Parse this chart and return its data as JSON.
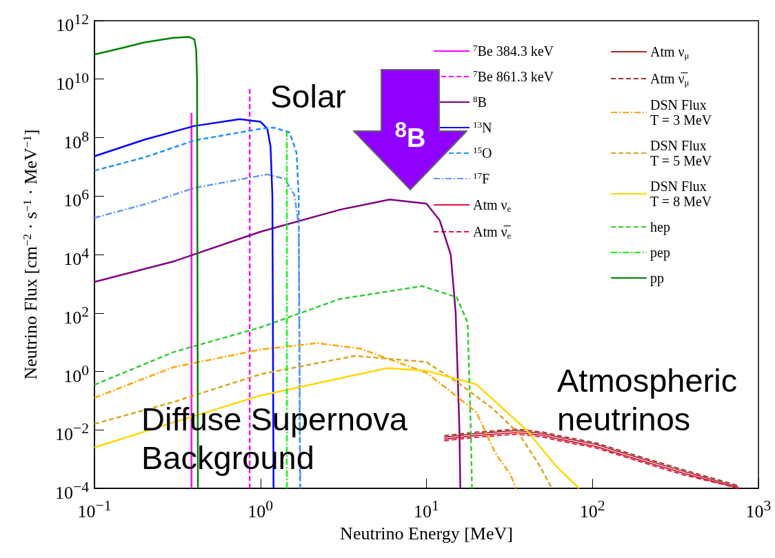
{
  "chart_data": {
    "type": "line",
    "xlabel": "Neutrino Energy [MeV]",
    "ylabel": "Neutrino Flux [cm$^{−2}$ · s$^{−1}$ · MeV$^{−1}$]",
    "log": "xy",
    "grid": false,
    "legend": "top right",
    "marker": "none",
    "xlim": [
      0.1,
      1000
    ],
    "ylim": [
      0.0001,
      1000000000000
    ],
    "xticks": [
      {
        "value": 0.1,
        "label": "10$^{−1}$"
      },
      {
        "value": 1,
        "label": "10$^{0}$"
      },
      {
        "value": 10,
        "label": "10$^{1}$"
      },
      {
        "value": 100,
        "label": "10$^{2}$"
      },
      {
        "value": 1000,
        "label": "10$^{3}$"
      }
    ],
    "yticks": [
      {
        "value": 0.0001,
        "label": "10$^{−4}$"
      },
      {
        "value": 0.01,
        "label": "10$^{−2}$"
      },
      {
        "value": 1,
        "label": "10$^{0}$"
      },
      {
        "value": 100,
        "label": "10$^{2}$"
      },
      {
        "value": 10000,
        "label": "10$^{4}$"
      },
      {
        "value": 1000000,
        "label": "10$^{6}$"
      },
      {
        "value": 100000000,
        "label": "10$^{8}$"
      },
      {
        "value": 10000000000,
        "label": "10$^{10}$"
      },
      {
        "value": 1000000000000,
        "label": "10$^{12}$"
      }
    ],
    "annotations": [
      "$^{8}$B",
      "Solar",
      "Diffuse Supernova\nBackground",
      "Atmospheric\nneutrinos"
    ],
    "series": [
      {
        "name": "$^{7}$Be 384.3 keV",
        "color": "#ff00ff",
        "line_style": "solid",
        "x": [
          0.3843,
          0.3843
        ],
        "values": [
          0.0001,
          700000000
        ]
      },
      {
        "name": "$^{7}$Be 861.3 keV",
        "color": "#ff00ff",
        "line_style": "dashed",
        "x": [
          0.8613,
          0.8613
        ],
        "values": [
          0.0001,
          4700000000
        ]
      },
      {
        "name": "$^{8}$B",
        "color": "#800080",
        "line_style": "solid",
        "x": [
          0.1,
          0.3,
          1,
          3,
          6,
          10,
          12,
          14,
          15,
          15.8,
          16
        ],
        "values": [
          1150,
          5800,
          60000,
          340000,
          760000,
          550000,
          150000,
          10000,
          100,
          0.01,
          0.0001
        ]
      },
      {
        "name": "$^{13}$N",
        "color": "#0000ff",
        "line_style": "solid",
        "x": [
          0.1,
          0.2,
          0.4,
          0.75,
          1,
          1.1,
          1.15,
          1.18,
          1.199
        ],
        "values": [
          23000000,
          85000000,
          250000000,
          430000000,
          350000000,
          200000000,
          50000000,
          1000000,
          0.0001
        ]
      },
      {
        "name": "$^{15}$O",
        "color": "#1e90ff",
        "line_style": "dashed",
        "x": [
          0.1,
          0.2,
          0.4,
          1,
          1.2,
          1.5,
          1.65,
          1.7,
          1.73
        ],
        "values": [
          7400000,
          21000000,
          80000000,
          200000000,
          220000000,
          150000000,
          30000000,
          1000000,
          0.0001
        ]
      },
      {
        "name": "$^{17}$F",
        "color": "#6495ed",
        "line_style": "dashdot",
        "x": [
          0.1,
          0.2,
          0.4,
          1,
          1.1,
          1.4,
          1.6,
          1.7,
          1.74
        ],
        "values": [
          180000,
          520000,
          1900000,
          5000000,
          5500000,
          3900000,
          1100000,
          100000,
          0.0001
        ]
      },
      {
        "name": "Atm ν$_{e}$",
        "color": "#dc143c",
        "line_style": "solid",
        "x": [
          12.8,
          20,
          35,
          50,
          63,
          105,
          174,
          345,
          760
        ],
        "values": [
          0.0048,
          0.0064,
          0.0081,
          0.0065,
          0.0048,
          0.0027,
          0.0011,
          0.00034,
          0.0001
        ]
      },
      {
        "name": "Atm ν̅$_{e}$",
        "color": "#dc143c",
        "line_style": "dashed",
        "x": [
          12.8,
          20,
          35,
          50,
          63,
          105,
          174,
          345,
          760
        ],
        "values": [
          0.0042,
          0.0056,
          0.0071,
          0.0057,
          0.0042,
          0.0024,
          0.00098,
          0.0003,
          0.0001
        ]
      },
      {
        "name": "Atm ν$_{μ}$",
        "color": "#a52a2a",
        "line_style": "solid",
        "x": [
          12.8,
          20,
          35,
          50,
          63,
          105,
          174,
          345,
          760
        ],
        "values": [
          0.0056,
          0.0075,
          0.0095,
          0.0076,
          0.0056,
          0.0032,
          0.0013,
          0.0004,
          0.00011
        ]
      },
      {
        "name": "Atm ν̅$_{μ}$",
        "color": "#a52a2a",
        "line_style": "dashed",
        "x": [
          12.8,
          20,
          35,
          50,
          63,
          105,
          174,
          345,
          760
        ],
        "values": [
          0.0063,
          0.0084,
          0.0106,
          0.0085,
          0.0063,
          0.0036,
          0.00146,
          0.00045,
          0.000123
        ]
      },
      {
        "name": "DSN Flux\nT = 3 MeV",
        "color": "#ffa500",
        "line_style": "dashdot",
        "x": [
          0.1,
          0.3,
          1,
          2.2,
          4,
          10,
          15,
          20,
          26,
          32,
          34.6
        ],
        "values": [
          0.126,
          1.4,
          5.6,
          9.3,
          6,
          0.9,
          0.15,
          0.04,
          0.0016,
          0.0003,
          0.0001
        ]
      },
      {
        "name": "DSN Flux\nT = 5 MeV",
        "color": "#daa520",
        "line_style": "dashed",
        "x": [
          0.1,
          0.3,
          1,
          3.7,
          10,
          16,
          25,
          36,
          48,
          57
        ],
        "values": [
          0.016,
          0.09,
          0.8,
          3.4,
          2.1,
          0.36,
          0.054,
          0.0076,
          0.0006,
          0.0001
        ]
      },
      {
        "name": "DSN Flux\nT = 8 MeV",
        "color": "#ffd700",
        "line_style": "solid",
        "x": [
          0.1,
          0.3,
          1,
          5.8,
          10,
          20,
          40,
          60,
          83
        ],
        "values": [
          0.0025,
          0.018,
          0.15,
          1.3,
          1.05,
          0.36,
          0.01,
          0.0006,
          0.0001
        ]
      },
      {
        "name": "hep",
        "color": "#32cd32",
        "line_style": "dashed",
        "x": [
          0.1,
          0.3,
          1,
          3,
          9.4,
          15.2,
          17.7,
          18.5,
          18.8
        ],
        "values": [
          0.35,
          4.6,
          32,
          300,
          830,
          350,
          47,
          0.01,
          0.0001
        ]
      },
      {
        "name": "pep",
        "color": "#00ff00",
        "line_style": "dashdot",
        "x": [
          1.442,
          1.442
        ],
        "values": [
          0.0001,
          150000000
        ]
      },
      {
        "name": "pp",
        "color": "#008000",
        "line_style": "solid",
        "x": [
          0.1,
          0.15,
          0.2,
          0.3,
          0.37,
          0.4,
          0.41,
          0.415,
          0.42
        ],
        "values": [
          70000000000,
          120000000000,
          180000000000,
          260000000000,
          280000000000,
          230000000000,
          100000000000,
          10000000000,
          0.0001
        ]
      }
    ]
  }
}
